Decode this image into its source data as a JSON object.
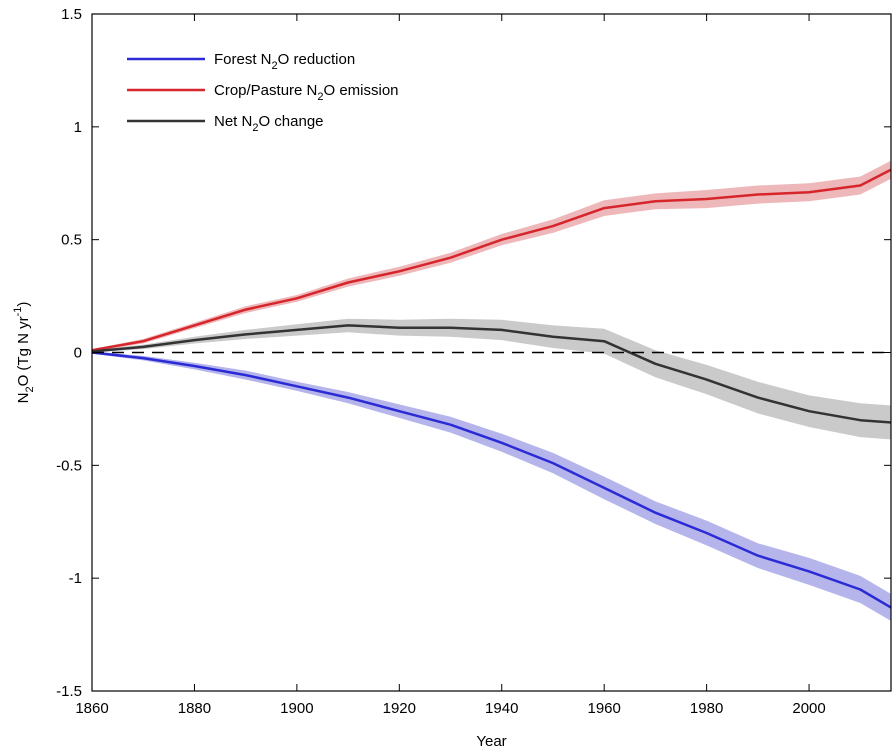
{
  "chart_data": {
    "type": "line",
    "title": "",
    "xlabel": "Year",
    "ylabel": {
      "base": "N",
      "sub": "2",
      "rest": "O (Tg N yr",
      "sup": "-1",
      "close": ")"
    },
    "xlim": [
      1860,
      2016
    ],
    "ylim": [
      -1.5,
      1.5
    ],
    "xticks": [
      1860,
      1880,
      1900,
      1920,
      1940,
      1960,
      1980,
      2000
    ],
    "xtick_labels": [
      "1860",
      "1880",
      "1900",
      "1920",
      "1940",
      "1960",
      "1980",
      "2000"
    ],
    "yticks": [
      -1.5,
      -1,
      -0.5,
      0,
      0.5,
      1,
      1.5
    ],
    "ytick_labels": [
      "-1.5",
      "-1",
      "-0.5",
      "0",
      "0.5",
      "1",
      "1.5"
    ],
    "grid": false,
    "legend_position": "top-left",
    "zero_reference_line": {
      "y": 0,
      "style": "dashed"
    },
    "series": [
      {
        "name": {
          "pre": "Forest N",
          "sub": "2",
          "post": "O reduction"
        },
        "color": "#2b2bd6",
        "band_color": "#9c9ce6",
        "x": [
          1860,
          1870,
          1880,
          1890,
          1900,
          1910,
          1920,
          1930,
          1940,
          1950,
          1960,
          1970,
          1980,
          1990,
          2000,
          2010,
          2016
        ],
        "y": [
          0,
          -0.025,
          -0.06,
          -0.1,
          -0.15,
          -0.2,
          -0.26,
          -0.32,
          -0.4,
          -0.49,
          -0.6,
          -0.71,
          -0.8,
          -0.9,
          -0.97,
          -1.05,
          -1.13
        ],
        "band_halfwidth": [
          0.005,
          0.01,
          0.015,
          0.02,
          0.02,
          0.025,
          0.03,
          0.035,
          0.04,
          0.045,
          0.05,
          0.05,
          0.055,
          0.055,
          0.06,
          0.06,
          0.06
        ]
      },
      {
        "name": {
          "pre": "Crop/Pasture N",
          "sub": "2",
          "post": "O emission"
        },
        "color": "#d6262b",
        "band_color": "#e8a0a3",
        "x": [
          1860,
          1870,
          1880,
          1890,
          1900,
          1910,
          1920,
          1930,
          1940,
          1950,
          1960,
          1970,
          1980,
          1990,
          2000,
          2010,
          2016
        ],
        "y": [
          0.01,
          0.05,
          0.12,
          0.19,
          0.24,
          0.31,
          0.36,
          0.42,
          0.5,
          0.56,
          0.64,
          0.67,
          0.68,
          0.7,
          0.71,
          0.74,
          0.81
        ],
        "band_halfwidth": [
          0.005,
          0.01,
          0.012,
          0.015,
          0.015,
          0.018,
          0.02,
          0.022,
          0.025,
          0.03,
          0.035,
          0.035,
          0.04,
          0.04,
          0.04,
          0.04,
          0.04
        ]
      },
      {
        "name": {
          "pre": "Net N",
          "sub": "2",
          "post": "O change"
        },
        "color": "#333333",
        "band_color": "#b8b8b8",
        "x": [
          1860,
          1870,
          1880,
          1890,
          1900,
          1910,
          1920,
          1930,
          1940,
          1950,
          1960,
          1970,
          1980,
          1990,
          2000,
          2010,
          2016
        ],
        "y": [
          0.005,
          0.025,
          0.055,
          0.08,
          0.1,
          0.12,
          0.11,
          0.11,
          0.1,
          0.07,
          0.05,
          -0.05,
          -0.12,
          -0.2,
          -0.26,
          -0.3,
          -0.31
        ],
        "band_halfwidth": [
          0.005,
          0.01,
          0.015,
          0.02,
          0.025,
          0.03,
          0.035,
          0.04,
          0.045,
          0.05,
          0.055,
          0.06,
          0.065,
          0.07,
          0.07,
          0.075,
          0.075
        ]
      }
    ]
  }
}
